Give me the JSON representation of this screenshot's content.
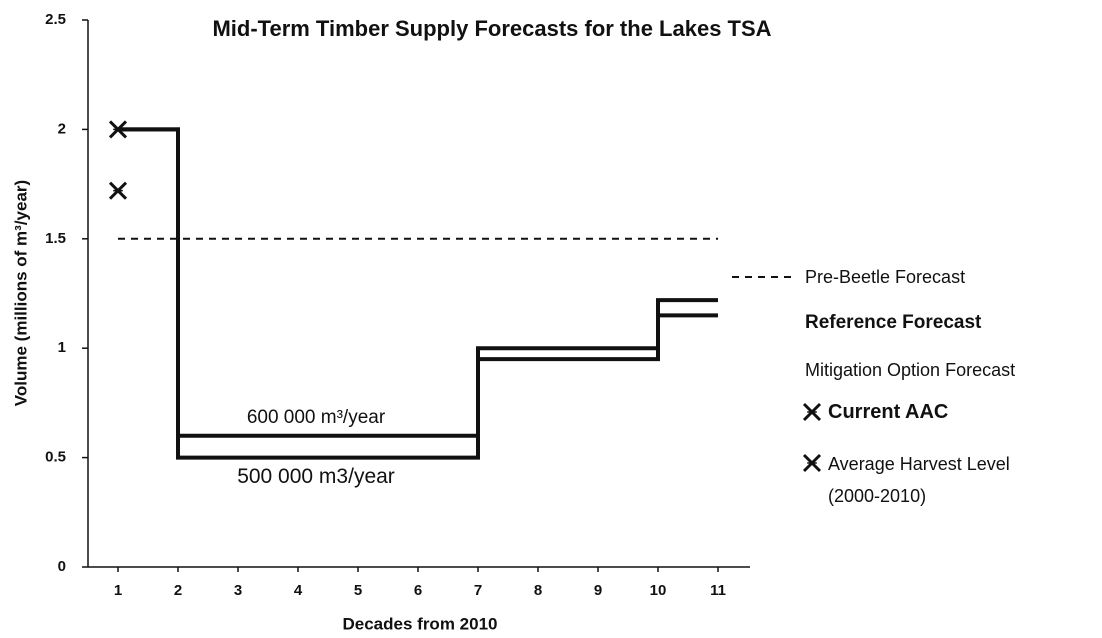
{
  "chart_data": {
    "type": "step",
    "title": "Mid-Term Timber Supply Forecasts for the Lakes TSA",
    "xlabel": "Decades from 2010",
    "ylabel": "Volume (millions of m³/year)",
    "xlim": [
      0.5,
      11.5
    ],
    "xticks": [
      1,
      2,
      3,
      4,
      5,
      6,
      7,
      8,
      9,
      10,
      11
    ],
    "ylim": [
      0,
      2.5
    ],
    "yticks": [
      0,
      0.5,
      1,
      1.5,
      2,
      2.5
    ],
    "grid": false,
    "series": [
      {
        "name": "Pre-Beetle Forecast",
        "color": "#111111",
        "dashed": true,
        "x": [
          1,
          11
        ],
        "values": [
          1.5,
          1.5
        ]
      },
      {
        "name": "Reference Forecast",
        "color": "#111111",
        "dashed": false,
        "x": [
          1,
          2,
          7,
          10,
          11
        ],
        "values": [
          2,
          0.5,
          0.95,
          1.15,
          1.15
        ]
      },
      {
        "name": "Mitigation Option Forecast",
        "color": "#111111",
        "dashed": false,
        "x": [
          1,
          2,
          7,
          10,
          11
        ],
        "values": [
          2,
          0.6,
          1.0,
          1.22,
          1.22
        ]
      }
    ],
    "markers": [
      {
        "name": "Current AAC",
        "x": 1,
        "y": 2
      },
      {
        "name": "Average Harvest Level (2000-2010)",
        "x": 1,
        "y": 1.72
      }
    ],
    "annotations": [
      {
        "text": "600 000 m³/year",
        "x": 4.3,
        "y": 0.68
      },
      {
        "text": "500 000 m3/year",
        "x": 4.3,
        "y": 0.41
      }
    ]
  }
}
